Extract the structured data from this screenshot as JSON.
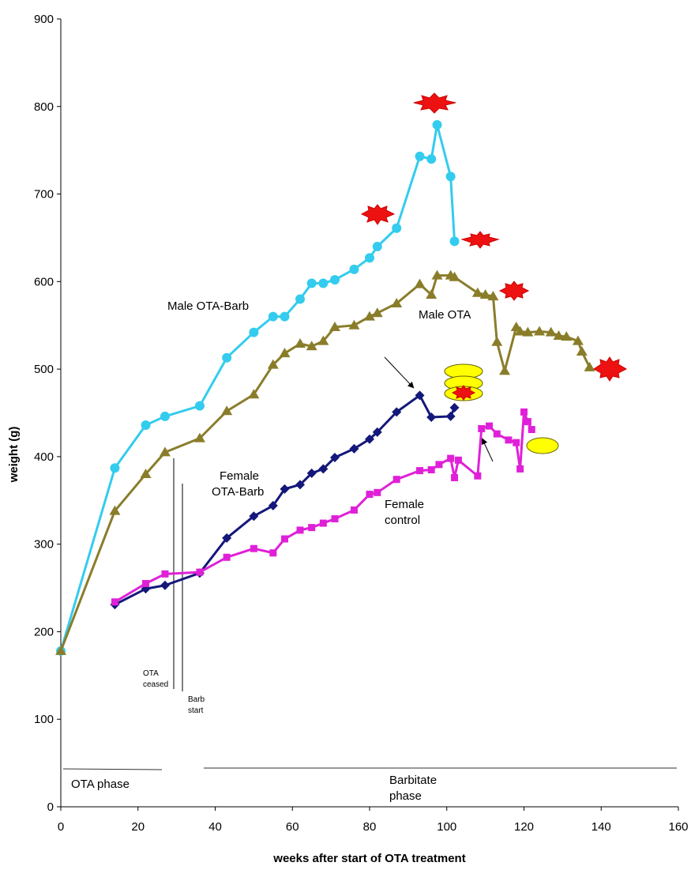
{
  "chart_data": {
    "type": "line",
    "xlabel": "weeks after start of OTA treatment",
    "ylabel": "weight (g)",
    "xlim": [
      0,
      160
    ],
    "ylim": [
      0,
      900
    ],
    "x_ticks": [
      "0",
      "20",
      "40",
      "60",
      "80",
      "100",
      "120",
      "140",
      "160"
    ],
    "y_ticks": [
      "0",
      "100",
      "200",
      "300",
      "400",
      "500",
      "600",
      "700",
      "800",
      "900"
    ],
    "grid": false,
    "series": [
      {
        "name": "Male OTA-Barb",
        "color": "#33ccee",
        "marker": "circle",
        "x": [
          0,
          14,
          22,
          27,
          36,
          43,
          50,
          55,
          58,
          62,
          65,
          68,
          71,
          76,
          80,
          82,
          87,
          93,
          96,
          97.5,
          101,
          102
        ],
        "y": [
          178,
          387,
          436,
          446,
          458,
          513,
          542,
          560,
          560,
          580,
          598,
          598,
          602,
          614,
          627,
          640,
          661,
          743,
          740,
          779,
          720,
          646
        ]
      },
      {
        "name": "Male OTA",
        "color": "#8a7d2a",
        "marker": "triangle",
        "x": [
          0,
          14,
          22,
          27,
          36,
          43,
          50,
          55,
          58,
          62,
          65,
          68,
          71,
          76,
          80,
          82,
          87,
          93,
          96,
          97.5,
          101,
          102,
          108,
          110,
          112,
          113,
          115,
          118,
          119,
          121,
          124,
          127,
          129,
          131,
          134,
          135,
          137
        ],
        "y": [
          178,
          338,
          380,
          405,
          421,
          452,
          471,
          505,
          518,
          529,
          526,
          532,
          548,
          550,
          560,
          564,
          575,
          597,
          585,
          607,
          607,
          605,
          587,
          585,
          583,
          531,
          498,
          548,
          543,
          542,
          543,
          542,
          538,
          537,
          532,
          520,
          502
        ]
      },
      {
        "name": "Female OTA-Barb",
        "color": "#14187a",
        "marker": "diamond",
        "x": [
          14,
          22,
          27,
          36,
          43,
          50,
          55,
          58,
          62,
          65,
          68,
          71,
          76,
          80,
          82,
          87,
          93,
          96,
          101,
          102
        ],
        "y": [
          231,
          249,
          253,
          267,
          307,
          332,
          344,
          363,
          368,
          381,
          386,
          399,
          409,
          420,
          428,
          451,
          470,
          445,
          446,
          456
        ]
      },
      {
        "name": "Female control",
        "color": "#e020d8",
        "marker": "square",
        "x": [
          14,
          22,
          27,
          36,
          43,
          50,
          55,
          58,
          62,
          65,
          68,
          71,
          76,
          80,
          82,
          87,
          93,
          96,
          98,
          101,
          102,
          103,
          108,
          109,
          111,
          113,
          116,
          118,
          119,
          120,
          121,
          122
        ],
        "y": [
          234,
          255,
          266,
          268,
          285,
          295,
          290,
          306,
          316,
          319,
          324,
          329,
          339,
          357,
          359,
          374,
          384,
          385,
          391,
          398,
          376,
          396,
          378,
          432,
          435,
          426,
          419,
          416,
          386,
          451,
          440,
          431
        ]
      }
    ],
    "annotations": {
      "series_labels": [
        "Male OTA-Barb",
        "Male OTA",
        "Female",
        "OTA-Barb",
        "Female",
        "control"
      ],
      "ota_ceased": [
        "OTA",
        "ceased"
      ],
      "barb_start": [
        "Barb",
        "start"
      ],
      "ota_phase": "OTA phase",
      "barbitate_phase": [
        "Barbitate",
        "phase"
      ]
    }
  }
}
